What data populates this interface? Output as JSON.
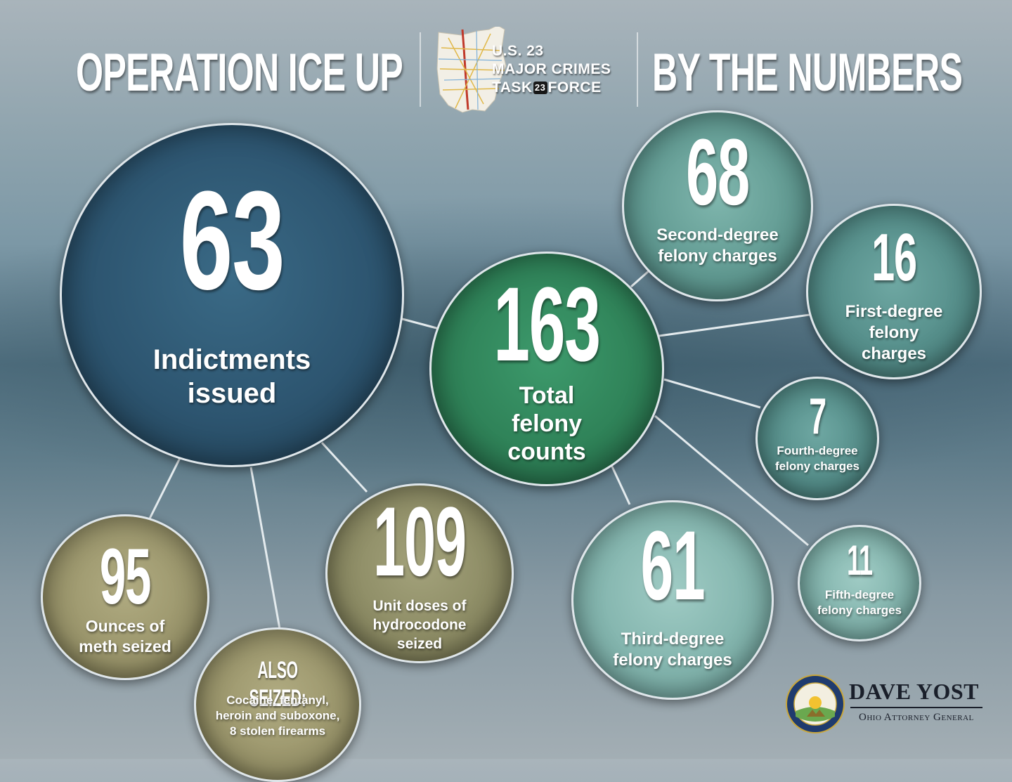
{
  "header": {
    "title_left": "OPERATION ICE UP",
    "title_right": "BY THE NUMBERS",
    "task_force_line1": "U.S. 23",
    "task_force_line2": "MAJOR CRIMES",
    "task_force_task": "TASK",
    "task_force_shield": "23",
    "task_force_force": "FORCE"
  },
  "stats": {
    "indictments": {
      "value": "63",
      "label": [
        "Indictments",
        "issued"
      ]
    },
    "total_felony": {
      "value": "163",
      "label": [
        "Total",
        "felony",
        "counts"
      ]
    },
    "second_degree": {
      "value": "68",
      "label": [
        "Second-degree",
        "felony charges"
      ]
    },
    "first_degree": {
      "value": "16",
      "label": [
        "First-degree",
        "felony",
        "charges"
      ]
    },
    "fourth_degree": {
      "value": "7",
      "label": [
        "Fourth-degree",
        "felony charges"
      ]
    },
    "fifth_degree": {
      "value": "11",
      "label": [
        "Fifth-degree",
        "felony charges"
      ]
    },
    "third_degree": {
      "value": "61",
      "label": [
        "Third-degree",
        "felony charges"
      ]
    },
    "hydrocodone": {
      "value": "109",
      "label": [
        "Unit doses of",
        "hydrocodone",
        "seized"
      ]
    },
    "meth": {
      "value": "95",
      "label": [
        "Ounces of",
        "meth seized"
      ]
    },
    "also_seized": {
      "heading": "ALSO SEIZED:",
      "label": [
        "Cocaine, fentanyl,",
        "heroin and suboxone,",
        "8 stolen firearms"
      ]
    }
  },
  "footer": {
    "name": "DAVE YOST",
    "subtitle": "Ohio Attorney General",
    "seal_text": "THE ATTORNEY GENERAL OF THE STATE OF OHIO"
  },
  "colors": {
    "navy": "#2d5570",
    "green": "#2f8258",
    "teal": "#5f9890",
    "light_teal": "#80b2ab",
    "olive": "#8b8a63"
  }
}
